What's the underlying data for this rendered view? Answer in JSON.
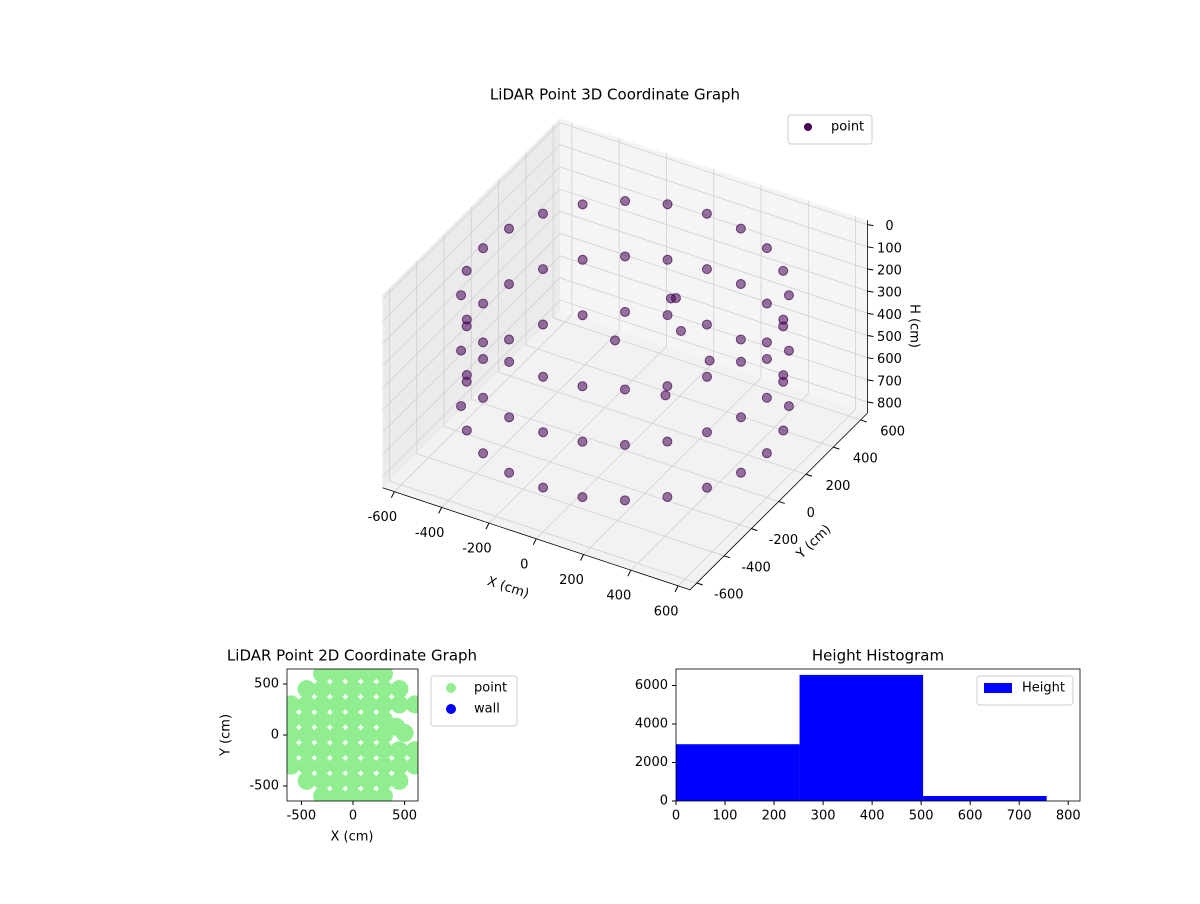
{
  "chart_data": [
    {
      "type": "scatter3d",
      "title": "LiDAR Point 3D Coordinate Graph",
      "xlabel": "X (cm)",
      "ylabel": "Y (cm)",
      "zlabel": "H (cm)",
      "xlim": [
        -650,
        650
      ],
      "ylim": [
        -650,
        650
      ],
      "zlim": [
        -20,
        850
      ],
      "z_inverted": true,
      "xticks": [
        -600,
        -400,
        -200,
        0,
        200,
        400,
        600
      ],
      "yticks": [
        -600,
        -400,
        -200,
        0,
        200,
        400,
        600
      ],
      "zticks": [
        0,
        100,
        200,
        300,
        400,
        500,
        600,
        700,
        800
      ],
      "grid": true,
      "legend": "upper right",
      "series": [
        {
          "name": "point",
          "color": "#440154",
          "x": [
            600,
            580,
            520,
            424,
            300,
            155,
            0,
            -155,
            -300,
            -424,
            -520,
            -580,
            -600,
            -580,
            -520,
            -424,
            -300,
            -155,
            0,
            155,
            300,
            424,
            520,
            580,
            600,
            580,
            520,
            424,
            300,
            155,
            0,
            -155,
            -300,
            -424,
            -520,
            -580,
            -600,
            -580,
            -520,
            -424,
            -300,
            -155,
            0,
            155,
            300,
            424,
            520,
            580,
            600,
            580,
            520,
            424,
            300,
            155,
            0,
            -155,
            -300,
            -424,
            -520,
            -580,
            -600,
            -580,
            -520,
            -424,
            -300,
            -155,
            0,
            155,
            300,
            424,
            520,
            580,
            100,
            150,
            50,
            -100,
            200,
            300
          ],
          "y": [
            0,
            155,
            300,
            424,
            520,
            580,
            600,
            580,
            520,
            424,
            300,
            155,
            0,
            -155,
            -300,
            -424,
            -520,
            -580,
            -600,
            -580,
            -520,
            -424,
            -300,
            -155,
            0,
            155,
            300,
            424,
            520,
            580,
            600,
            580,
            520,
            424,
            300,
            155,
            0,
            -155,
            -300,
            -424,
            -520,
            -580,
            -600,
            -580,
            -520,
            -424,
            -300,
            -155,
            0,
            155,
            300,
            424,
            520,
            580,
            600,
            580,
            520,
            424,
            300,
            155,
            0,
            -155,
            -300,
            -424,
            -520,
            -580,
            -600,
            -580,
            -520,
            -424,
            -300,
            -155,
            200,
            150,
            250,
            100,
            -50,
            100
          ],
          "z": [
            150,
            150,
            150,
            150,
            150,
            150,
            150,
            150,
            150,
            150,
            150,
            150,
            150,
            150,
            150,
            150,
            150,
            150,
            150,
            150,
            150,
            150,
            150,
            150,
            400,
            400,
            400,
            400,
            400,
            400,
            400,
            400,
            400,
            400,
            400,
            400,
            400,
            400,
            400,
            400,
            400,
            400,
            400,
            400,
            400,
            400,
            400,
            400,
            650,
            650,
            650,
            650,
            650,
            650,
            650,
            650,
            650,
            650,
            650,
            650,
            650,
            650,
            650,
            650,
            650,
            650,
            650,
            650,
            650,
            650,
            650,
            650,
            250,
            350,
            300,
            450,
            500,
            400
          ]
        }
      ]
    },
    {
      "type": "scatter",
      "title": "LiDAR Point 2D Coordinate Graph",
      "xlabel": "X (cm)",
      "ylabel": "Y (cm)",
      "xlim": [
        -640,
        630
      ],
      "ylim": [
        -647,
        647
      ],
      "xticks": [
        -500,
        0,
        500
      ],
      "yticks": [
        -500,
        0,
        500
      ],
      "legend": "outside upper right",
      "series": [
        {
          "name": "point",
          "color": "#90ee90",
          "x": [
            -300,
            -150,
            0,
            150,
            300,
            -450,
            -300,
            -150,
            0,
            150,
            300,
            450,
            -600,
            -450,
            -300,
            -150,
            0,
            150,
            300,
            450,
            600,
            -600,
            -450,
            -300,
            -150,
            0,
            150,
            300,
            -600,
            -450,
            -300,
            -150,
            0,
            150,
            300,
            -600,
            -450,
            -300,
            -150,
            0,
            150,
            300,
            450,
            600,
            -600,
            -450,
            -300,
            -150,
            0,
            150,
            300,
            450,
            600,
            -450,
            -300,
            -150,
            0,
            150,
            300,
            450,
            -300,
            -150,
            0,
            150,
            300,
            420,
            500
          ],
          "y": [
            600,
            600,
            600,
            600,
            600,
            450,
            450,
            450,
            450,
            450,
            450,
            450,
            300,
            300,
            300,
            300,
            300,
            300,
            300,
            300,
            300,
            150,
            150,
            150,
            150,
            150,
            150,
            150,
            0,
            0,
            0,
            0,
            0,
            0,
            0,
            -150,
            -150,
            -150,
            -150,
            -150,
            -150,
            -150,
            -150,
            -150,
            -300,
            -300,
            -300,
            -300,
            -300,
            -300,
            -300,
            -300,
            -300,
            -450,
            -450,
            -450,
            -450,
            -450,
            -450,
            -450,
            -600,
            -600,
            -600,
            -600,
            -600,
            80,
            20
          ]
        },
        {
          "name": "wall",
          "color": "#0000ff",
          "x": [],
          "y": []
        }
      ]
    },
    {
      "type": "histogram",
      "title": "Height Histogram",
      "bins": [
        0,
        252,
        504,
        756
      ],
      "xlim": [
        0,
        824
      ],
      "ylim": [
        0,
        6857
      ],
      "xticks": [
        0,
        100,
        200,
        300,
        400,
        500,
        600,
        700,
        800
      ],
      "yticks": [
        0,
        2000,
        4000,
        6000
      ],
      "legend": "upper right",
      "series": [
        {
          "name": "Height",
          "color": "#0000ff",
          "values": [
            2950,
            6550,
            260
          ]
        }
      ]
    }
  ]
}
